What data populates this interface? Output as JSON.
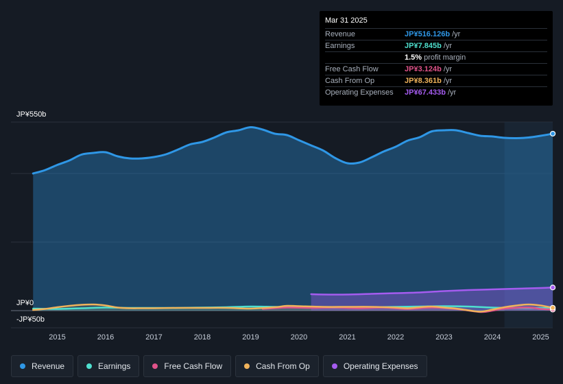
{
  "colors": {
    "revenue": "#2f97e6",
    "earnings": "#4fe0cf",
    "free_cash_flow": "#e0538a",
    "cash_from_op": "#f0b35b",
    "operating_expenses": "#a55cf0"
  },
  "tooltip": {
    "date": "Mar 31 2025",
    "rows": [
      {
        "label": "Revenue",
        "value": "JP¥516.126b",
        "unit": "/yr"
      },
      {
        "label": "Earnings",
        "value": "JP¥7.845b",
        "unit": "/yr"
      },
      {
        "label": "",
        "value": "1.5%",
        "unit": "profit margin"
      },
      {
        "label": "Free Cash Flow",
        "value": "JP¥3.124b",
        "unit": "/yr"
      },
      {
        "label": "Cash From Op",
        "value": "JP¥8.361b",
        "unit": "/yr"
      },
      {
        "label": "Operating Expenses",
        "value": "JP¥67.433b",
        "unit": "/yr"
      }
    ]
  },
  "legend": [
    {
      "label": "Revenue",
      "icon": "revenue-dot-icon"
    },
    {
      "label": "Earnings",
      "icon": "earnings-dot-icon"
    },
    {
      "label": "Free Cash Flow",
      "icon": "free-cash-flow-dot-icon"
    },
    {
      "label": "Cash From Op",
      "icon": "cash-from-op-dot-icon"
    },
    {
      "label": "Operating Expenses",
      "icon": "operating-expenses-dot-icon"
    }
  ],
  "chart_data": {
    "type": "line",
    "title": "",
    "y_tick_labels": [
      "JP¥550b",
      "JP¥0",
      "-JP¥50b"
    ],
    "ylim": [
      -50,
      550
    ],
    "xlim": [
      2014.15,
      2025.25
    ],
    "forecast_start": 2024.25,
    "x_ticks": [
      2015,
      2016,
      2017,
      2018,
      2019,
      2020,
      2021,
      2022,
      2023,
      2024,
      2025
    ],
    "x_tick_labels": [
      "2015",
      "2016",
      "2017",
      "2018",
      "2019",
      "2020",
      "2021",
      "2022",
      "2023",
      "2024",
      "2025"
    ],
    "series": [
      {
        "name": "Revenue",
        "key": "revenue",
        "x": [
          2014.5,
          2014.75,
          2015.0,
          2015.25,
          2015.5,
          2015.75,
          2016.0,
          2016.25,
          2016.5,
          2016.75,
          2017.0,
          2017.25,
          2017.5,
          2017.75,
          2018.0,
          2018.25,
          2018.5,
          2018.75,
          2019.0,
          2019.25,
          2019.5,
          2019.75,
          2020.0,
          2020.25,
          2020.5,
          2020.75,
          2021.0,
          2021.25,
          2021.5,
          2021.75,
          2022.0,
          2022.25,
          2022.5,
          2022.75,
          2023.0,
          2023.25,
          2023.5,
          2023.75,
          2024.0,
          2024.25,
          2024.5,
          2024.75,
          2025.0,
          2025.25
        ],
        "values": [
          400,
          410,
          425,
          438,
          455,
          460,
          462,
          450,
          444,
          444,
          448,
          456,
          470,
          485,
          492,
          505,
          520,
          526,
          535,
          528,
          516,
          512,
          497,
          482,
          467,
          445,
          430,
          432,
          447,
          464,
          478,
          496,
          506,
          523,
          526,
          526,
          518,
          510,
          508,
          504,
          503,
          505,
          510,
          516.126
        ]
      },
      {
        "name": "Earnings",
        "key": "earnings",
        "x": [
          2014.5,
          2015.0,
          2015.5,
          2016.0,
          2016.5,
          2017.0,
          2017.5,
          2018.0,
          2018.5,
          2019.0,
          2019.5,
          2020.0,
          2020.5,
          2021.0,
          2021.5,
          2022.0,
          2022.5,
          2023.0,
          2023.5,
          2024.0,
          2024.5,
          2025.0,
          2025.25
        ],
        "values": [
          6,
          5,
          7,
          9,
          8,
          8,
          8,
          9,
          10,
          12,
          11,
          10,
          9,
          9,
          10,
          11,
          12,
          13,
          12,
          9,
          8,
          7.8,
          7.845
        ]
      },
      {
        "name": "Free Cash Flow",
        "key": "free_cash_flow",
        "x": [
          2019.25,
          2019.75,
          2020.25,
          2020.75,
          2021.25,
          2021.75,
          2022.25,
          2022.75,
          2023.25,
          2023.75,
          2024.0,
          2024.25,
          2024.75,
          2025.0,
          2025.25
        ],
        "values": [
          5,
          9,
          8,
          9,
          7,
          9,
          5,
          9,
          5,
          -4,
          0,
          6,
          9,
          5,
          3.124
        ]
      },
      {
        "name": "Cash From Op",
        "key": "cash_from_op",
        "x": [
          2014.5,
          2014.75,
          2015.0,
          2015.25,
          2015.5,
          2015.75,
          2016.0,
          2016.25,
          2016.5,
          2016.75,
          2017.0,
          2017.5,
          2018.0,
          2018.5,
          2019.0,
          2019.5,
          2019.75,
          2020.0,
          2020.5,
          2021.0,
          2021.5,
          2022.0,
          2022.25,
          2022.5,
          2022.75,
          2023.0,
          2023.25,
          2023.5,
          2023.75,
          2024.0,
          2024.25,
          2024.5,
          2024.75,
          2025.0,
          2025.25
        ],
        "values": [
          2,
          5,
          10,
          14,
          17,
          18,
          15,
          9,
          7,
          7,
          7,
          8,
          8,
          8,
          6,
          10,
          14,
          13,
          11,
          11,
          11,
          9,
          7,
          10,
          12,
          9,
          6,
          1,
          -3,
          3,
          10,
          15,
          18,
          15,
          8.361
        ]
      },
      {
        "name": "Operating Expenses",
        "key": "operating_expenses",
        "x": [
          2020.25,
          2020.5,
          2021.0,
          2021.5,
          2022.0,
          2022.5,
          2023.0,
          2023.5,
          2024.0,
          2024.5,
          2025.0,
          2025.25
        ],
        "values": [
          48,
          47,
          47,
          49,
          51,
          53,
          57,
          60,
          62,
          64,
          66,
          67.433
        ]
      }
    ]
  }
}
